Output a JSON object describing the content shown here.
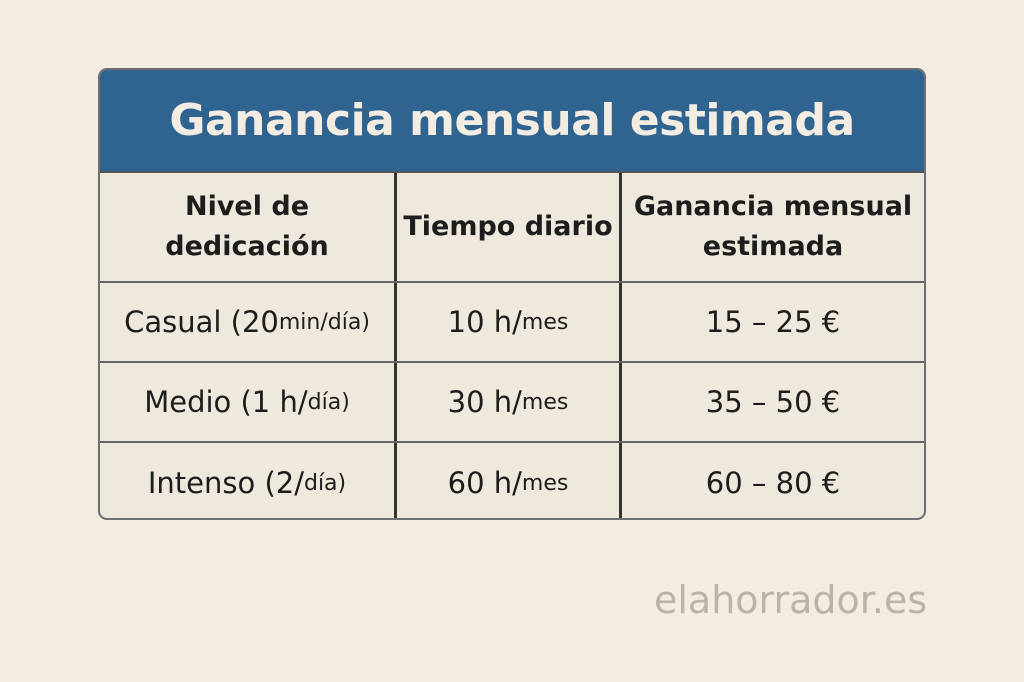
{
  "title": "Ganancia mensual  estimada",
  "headers": [
    "Nivel de dedicación",
    "Tiempo diario",
    "Ganancia mensual estimada"
  ],
  "rows": [
    {
      "level_main": "Casual (20 ",
      "level_small": "min/día)",
      "time_main": "10 h/",
      "time_small": "mes",
      "earnings": "15 – 25 €"
    },
    {
      "level_main": "Medio (1 h/",
      "level_small": "día)",
      "time_main": "30 h/",
      "time_small": "mes",
      "earnings": "35 – 50 €"
    },
    {
      "level_main": "Intenso (2/",
      "level_small": "día)",
      "time_main": "60 h/",
      "time_small": "mes",
      "earnings": "60 – 80 €"
    }
  ],
  "watermark": "elahorrador.es",
  "colors": {
    "header": "#2f6490",
    "background": "#f3ece2",
    "cell": "#efe8dd"
  }
}
